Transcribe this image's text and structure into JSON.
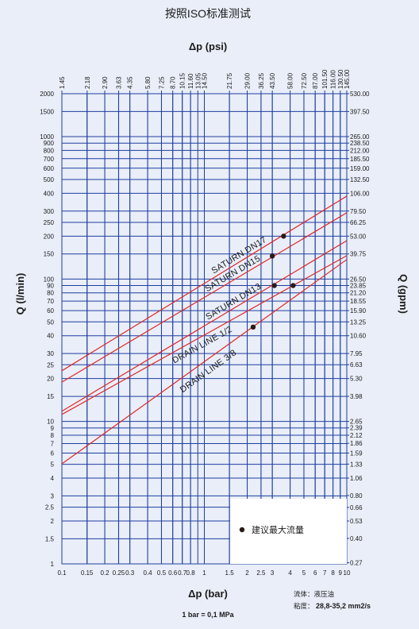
{
  "chart_data": {
    "type": "line",
    "title": "按照ISO标准测试",
    "x_label": "Δp (bar)",
    "x2_label": "Δp (psi)",
    "y_label": "Q (l/min)",
    "y2_label": "Q (gpm)",
    "note": "1 bar = 0,1 MPa",
    "fluid": "流体：液压油",
    "viscosity_label": "粘度：",
    "viscosity_value": "28,8-35,2 mm2/s",
    "xscale": "log",
    "yscale": "log",
    "grid": true,
    "legend": "lower right",
    "xlim": [
      0.1,
      10
    ],
    "x2lim": [
      1.45,
      145
    ],
    "ylim": [
      1,
      2000
    ],
    "y2lim": [
      0.265,
      530
    ],
    "xticks": [
      0.1,
      0.15,
      0.2,
      0.25,
      0.3,
      0.4,
      0.5,
      0.6,
      0.7,
      0.8,
      1,
      1.5,
      2,
      2.5,
      3,
      4,
      5,
      6,
      7,
      8,
      9,
      10
    ],
    "x2ticks": [
      1.45,
      2.18,
      {
        "value": 2.9,
        "label": "2.90"
      },
      3.63,
      4.35,
      {
        "value": 5.8,
        "label": "5.80"
      },
      7.25,
      {
        "value": 8.7,
        "label": "8.70"
      },
      10.15,
      {
        "value": 11.6,
        "label": "11.60"
      },
      13.05,
      {
        "value": 14.5,
        "label": "14.50"
      },
      21.75,
      {
        "value": 29,
        "label": "29.00"
      },
      36.25,
      {
        "value": 43.5,
        "label": "43.50"
      },
      {
        "value": 58,
        "label": "58.00"
      },
      {
        "value": 72.5,
        "label": "72.50"
      },
      {
        "value": 87,
        "label": "87.00"
      },
      {
        "value": 101.5,
        "label": "101.50"
      },
      {
        "value": 116,
        "label": "116.00"
      },
      {
        "value": 130.5,
        "label": "130.50"
      },
      {
        "value": 145,
        "label": "145.00"
      }
    ],
    "yticks": [
      1,
      1.5,
      2,
      2.5,
      3,
      4,
      5,
      6,
      7,
      8,
      9,
      10,
      15,
      20,
      25,
      30,
      40,
      50,
      60,
      70,
      80,
      90,
      100,
      150,
      200,
      250,
      300,
      400,
      500,
      600,
      700,
      800,
      900,
      1000,
      1500,
      2000
    ],
    "y2ticks": [
      0.27,
      {
        "value": 0.4,
        "label": "0.40"
      },
      0.53,
      0.66,
      {
        "value": 0.8,
        "label": "0.80"
      },
      1.06,
      1.33,
      1.59,
      1.86,
      2.12,
      2.39,
      2.65,
      3.98,
      {
        "value": 5.3,
        "label": "5.30"
      },
      6.63,
      7.95,
      {
        "value": 10.6,
        "label": "10.60"
      },
      13.25,
      {
        "value": 15.9,
        "label": "15.90"
      },
      18.55,
      {
        "value": 21.2,
        "label": "21.20"
      },
      23.85,
      {
        "value": 26.5,
        "label": "26.50"
      },
      39.75,
      {
        "value": 53,
        "label": "53.00"
      },
      66.25,
      {
        "value": 79.5,
        "label": "79.50"
      },
      {
        "value": 106,
        "label": "106.00"
      },
      {
        "value": 132.5,
        "label": "132.50"
      },
      {
        "value": 159,
        "label": "159.00"
      },
      {
        "value": 185.5,
        "label": "185.50"
      },
      {
        "value": 212,
        "label": "212.00"
      },
      {
        "value": 238.5,
        "label": "238.50"
      },
      {
        "value": 265,
        "label": "265.00"
      },
      {
        "value": 397.5,
        "label": "397.50"
      },
      {
        "value": 530,
        "label": "530.00"
      }
    ],
    "series": [
      {
        "name": "SATURN DN17",
        "type": "line",
        "color": "#e02828",
        "x": [
          0.1,
          10
        ],
        "values": [
          22.7,
          382
        ]
      },
      {
        "name": "SATURN DN15",
        "type": "line",
        "color": "#e02828",
        "x": [
          0.1,
          10
        ],
        "values": [
          18.9,
          292
        ]
      },
      {
        "name": "SATURN DN13",
        "type": "line",
        "color": "#e02828",
        "x": [
          0.1,
          10
        ],
        "values": [
          11.8,
          186
        ]
      },
      {
        "name": "DRAIN LINE 1/2",
        "type": "line",
        "color": "#e02828",
        "x": [
          0.1,
          10
        ],
        "values": [
          11.2,
          146
        ]
      },
      {
        "name": "DRAIN LINE 3/8",
        "type": "line",
        "color": "#e02828",
        "x": [
          0.1,
          10
        ],
        "values": [
          5.04,
          137
        ]
      },
      {
        "name": "建议最大流量",
        "type": "scatter",
        "color": "#2a1a1a",
        "x": [
          3.6,
          3.0,
          3.1,
          4.2,
          2.2
        ],
        "values": [
          200,
          145,
          90,
          90,
          46
        ]
      }
    ]
  }
}
